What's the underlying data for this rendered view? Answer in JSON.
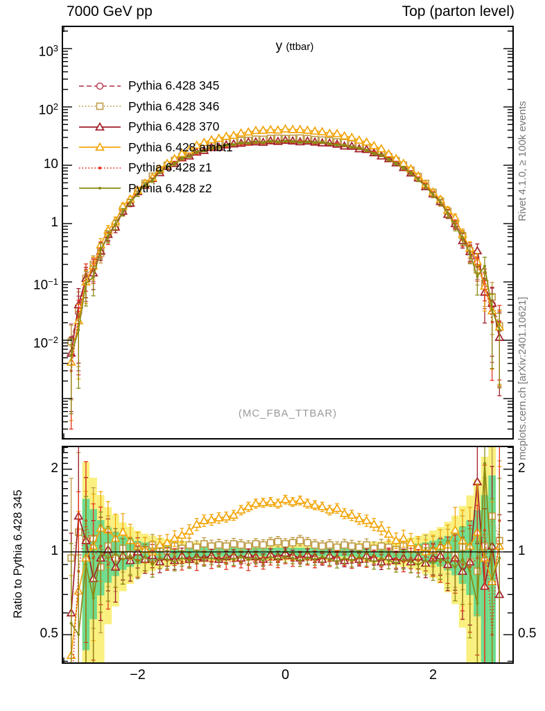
{
  "header": {
    "left_title": "7000 GeV pp",
    "right_title": "Top (parton level)"
  },
  "plot_title": {
    "main": "y",
    "sub": "(ttbar)"
  },
  "watermark": "(MC_FBA_TTBAR)",
  "right_margin": {
    "top_note": "Rivet 4.1.0, ≥ 100k events",
    "bottom_note": "mcplots.cern.ch [arXiv:2401.10621]"
  },
  "ratio_axis_label": "Ratio to Pythia 6.428 345",
  "colors": {
    "band_outer": "#f9f07f",
    "band_inner": "#6fdc8f",
    "frame": "#000000",
    "note_gray": "#777777",
    "watermark_gray": "#9a9a9a"
  },
  "axes": {
    "x_major_ticks": [
      {
        "v": -2,
        "t": "−2"
      },
      {
        "v": 0,
        "t": "0"
      },
      {
        "v": 2,
        "t": "2"
      }
    ],
    "x_minor_step": 0.5,
    "main_y_ticks": [
      {
        "v": 1000,
        "base": "10",
        "exp": "3"
      },
      {
        "v": 100,
        "base": "10",
        "exp": "2"
      },
      {
        "v": 10,
        "base": "10",
        "exp": ""
      },
      {
        "v": 1,
        "base": "1",
        "exp": ""
      },
      {
        "v": 0.1,
        "base": "10",
        "exp": "−1"
      },
      {
        "v": 0.01,
        "base": "10",
        "exp": "−2"
      }
    ],
    "ratio_y_ticks": [
      {
        "v": 2,
        "t": "2"
      },
      {
        "v": 1,
        "t": "1"
      },
      {
        "v": 0.5,
        "t": "0.5"
      }
    ]
  },
  "chart_data": {
    "type": "line",
    "title": "y (ttbar)",
    "xlabel": "",
    "ylabel": "",
    "x_range": [
      -3.03,
      3.08
    ],
    "main_log_range": [
      -3.69,
      3.381
    ],
    "ratio_range": [
      0.394,
      2.42
    ],
    "bin_width": 0.1,
    "x": [
      -2.9,
      -2.8,
      -2.7,
      -2.6,
      -2.5,
      -2.4,
      -2.3,
      -2.2,
      -2.1,
      -2.0,
      -1.9,
      -1.8,
      -1.7,
      -1.6,
      -1.5,
      -1.4,
      -1.3,
      -1.2,
      -1.1,
      -1.0,
      -0.9,
      -0.8,
      -0.7,
      -0.6,
      -0.5,
      -0.4,
      -0.3,
      -0.2,
      -0.1,
      0.0,
      0.1,
      0.2,
      0.3,
      0.4,
      0.5,
      0.6,
      0.7,
      0.8,
      0.9,
      1.0,
      1.1,
      1.2,
      1.3,
      1.4,
      1.5,
      1.6,
      1.7,
      1.8,
      1.9,
      2.0,
      2.1,
      2.2,
      2.3,
      2.4,
      2.5,
      2.6,
      2.7,
      2.8,
      2.9
    ],
    "reference_name": "Pythia 6.428 345",
    "ref_values": [
      0.01,
      0.03,
      0.105,
      0.178,
      0.355,
      0.64,
      0.985,
      1.68,
      2.39,
      3.52,
      4.81,
      6.12,
      8.1,
      9.92,
      11.55,
      13.8,
      15.3,
      17.5,
      18.9,
      20.8,
      21.7,
      23.3,
      23.9,
      25.1,
      25.4,
      26.2,
      26.3,
      26.8,
      26.7,
      27.0,
      26.9,
      26.6,
      26.5,
      26.0,
      25.7,
      24.8,
      24.2,
      23.0,
      22.0,
      20.4,
      19.2,
      17.2,
      15.7,
      13.5,
      11.8,
      9.6,
      8.0,
      6.3,
      4.7,
      3.4,
      2.47,
      1.6,
      1.05,
      0.6,
      0.36,
      0.19,
      0.089,
      0.041,
      0.016
    ],
    "series": [
      {
        "name": "Pythia 6.428 345",
        "color": "#bd4961",
        "marker": "circle-open",
        "line": "dashed",
        "is_reference": true
      },
      {
        "name": "Pythia 6.428 346",
        "color": "#bf9b45",
        "marker": "square-open",
        "line": "dotted",
        "ratio": [
          0.95,
          1.18,
          1.1,
          1.12,
          0.88,
          1.05,
          0.95,
          1.03,
          0.98,
          1.05,
          1.02,
          1.06,
          1.03,
          1.01,
          1.05,
          1.03,
          1.06,
          1.04,
          1.07,
          1.05,
          1.06,
          1.05,
          1.07,
          1.06,
          1.05,
          1.07,
          1.06,
          1.08,
          1.09,
          1.07,
          1.08,
          1.1,
          1.08,
          1.06,
          1.05,
          1.06,
          1.04,
          1.06,
          1.05,
          1.04,
          1.06,
          1.03,
          1.05,
          1.04,
          1.02,
          1.05,
          1.03,
          1.02,
          1.04,
          1.01,
          0.98,
          1.02,
          0.97,
          1.04,
          0.92,
          0.85,
          1.05,
          1.35,
          1.1
        ]
      },
      {
        "name": "Pythia 6.428 370",
        "color": "#a01e28",
        "marker": "triangle-open",
        "line": "solid",
        "ratio": [
          0.6,
          1.35,
          1.1,
          0.8,
          0.95,
          1.02,
          0.88,
          0.97,
          0.93,
          1.0,
          0.94,
          0.97,
          0.92,
          0.96,
          0.93,
          0.97,
          0.94,
          0.96,
          0.95,
          0.97,
          0.94,
          0.96,
          0.97,
          0.95,
          0.98,
          0.96,
          0.94,
          0.98,
          0.96,
          0.99,
          0.97,
          0.95,
          0.98,
          0.96,
          0.94,
          0.97,
          0.95,
          0.93,
          0.96,
          0.94,
          0.97,
          0.95,
          0.92,
          0.96,
          0.93,
          0.95,
          0.92,
          0.96,
          0.91,
          0.95,
          0.97,
          0.9,
          0.95,
          0.85,
          0.92,
          1.8,
          0.75,
          1.05,
          0.7
        ]
      },
      {
        "name": "Pythia 6.428 ambt1",
        "color": "#f2a50a",
        "marker": "triangle-open",
        "line": "solid",
        "ratio": [
          0.42,
          0.72,
          0.95,
          1.05,
          1.22,
          1.2,
          1.12,
          1.18,
          1.1,
          1.05,
          1.02,
          1.0,
          1.06,
          1.08,
          1.12,
          1.15,
          1.19,
          1.26,
          1.3,
          1.31,
          1.33,
          1.34,
          1.36,
          1.42,
          1.46,
          1.5,
          1.51,
          1.52,
          1.5,
          1.55,
          1.52,
          1.54,
          1.5,
          1.48,
          1.46,
          1.42,
          1.44,
          1.38,
          1.36,
          1.32,
          1.3,
          1.26,
          1.22,
          1.16,
          1.1,
          1.12,
          1.08,
          1.04,
          1.0,
          1.02,
          1.05,
          1.06,
          1.2,
          1.1,
          1.05,
          1.18,
          0.95,
          0.78,
          1.05
        ]
      },
      {
        "name": "Pythia 6.428 z1",
        "color": "#e4321c",
        "marker": "dot",
        "line": "dotted",
        "ratio": [
          0.3,
          0.85,
          1.3,
          0.95,
          1.05,
          0.9,
          0.98,
          0.94,
          0.97,
          0.93,
          0.96,
          0.92,
          0.95,
          0.93,
          0.96,
          0.92,
          0.94,
          0.91,
          0.95,
          0.92,
          0.94,
          0.91,
          0.93,
          0.92,
          0.9,
          0.93,
          0.91,
          0.94,
          0.92,
          0.95,
          0.93,
          0.96,
          0.94,
          0.92,
          0.95,
          0.93,
          0.96,
          0.94,
          0.92,
          0.95,
          0.93,
          0.96,
          0.94,
          0.97,
          0.94,
          0.92,
          0.95,
          0.93,
          0.96,
          0.94,
          0.92,
          0.95,
          0.93,
          0.9,
          0.88,
          0.95,
          1.2,
          0.5,
          1.3
        ]
      },
      {
        "name": "Pythia 6.428 z2",
        "color": "#8a8b14",
        "marker": "dot",
        "line": "solid",
        "ratio": [
          0.55,
          0.5,
          0.9,
          0.68,
          1.0,
          0.95,
          0.98,
          0.94,
          0.97,
          0.92,
          0.96,
          0.9,
          0.95,
          0.94,
          0.92,
          0.95,
          0.93,
          0.96,
          0.94,
          0.95,
          0.93,
          0.95,
          0.94,
          0.96,
          0.94,
          0.95,
          0.93,
          0.96,
          0.94,
          0.96,
          0.95,
          0.93,
          0.95,
          0.94,
          0.96,
          0.94,
          0.92,
          0.95,
          0.93,
          0.96,
          0.94,
          0.92,
          0.95,
          0.93,
          0.91,
          0.94,
          0.92,
          0.9,
          0.93,
          0.91,
          0.94,
          0.92,
          0.88,
          0.94,
          0.85,
          0.65,
          2.1,
          0.8,
          0.95
        ]
      }
    ]
  }
}
